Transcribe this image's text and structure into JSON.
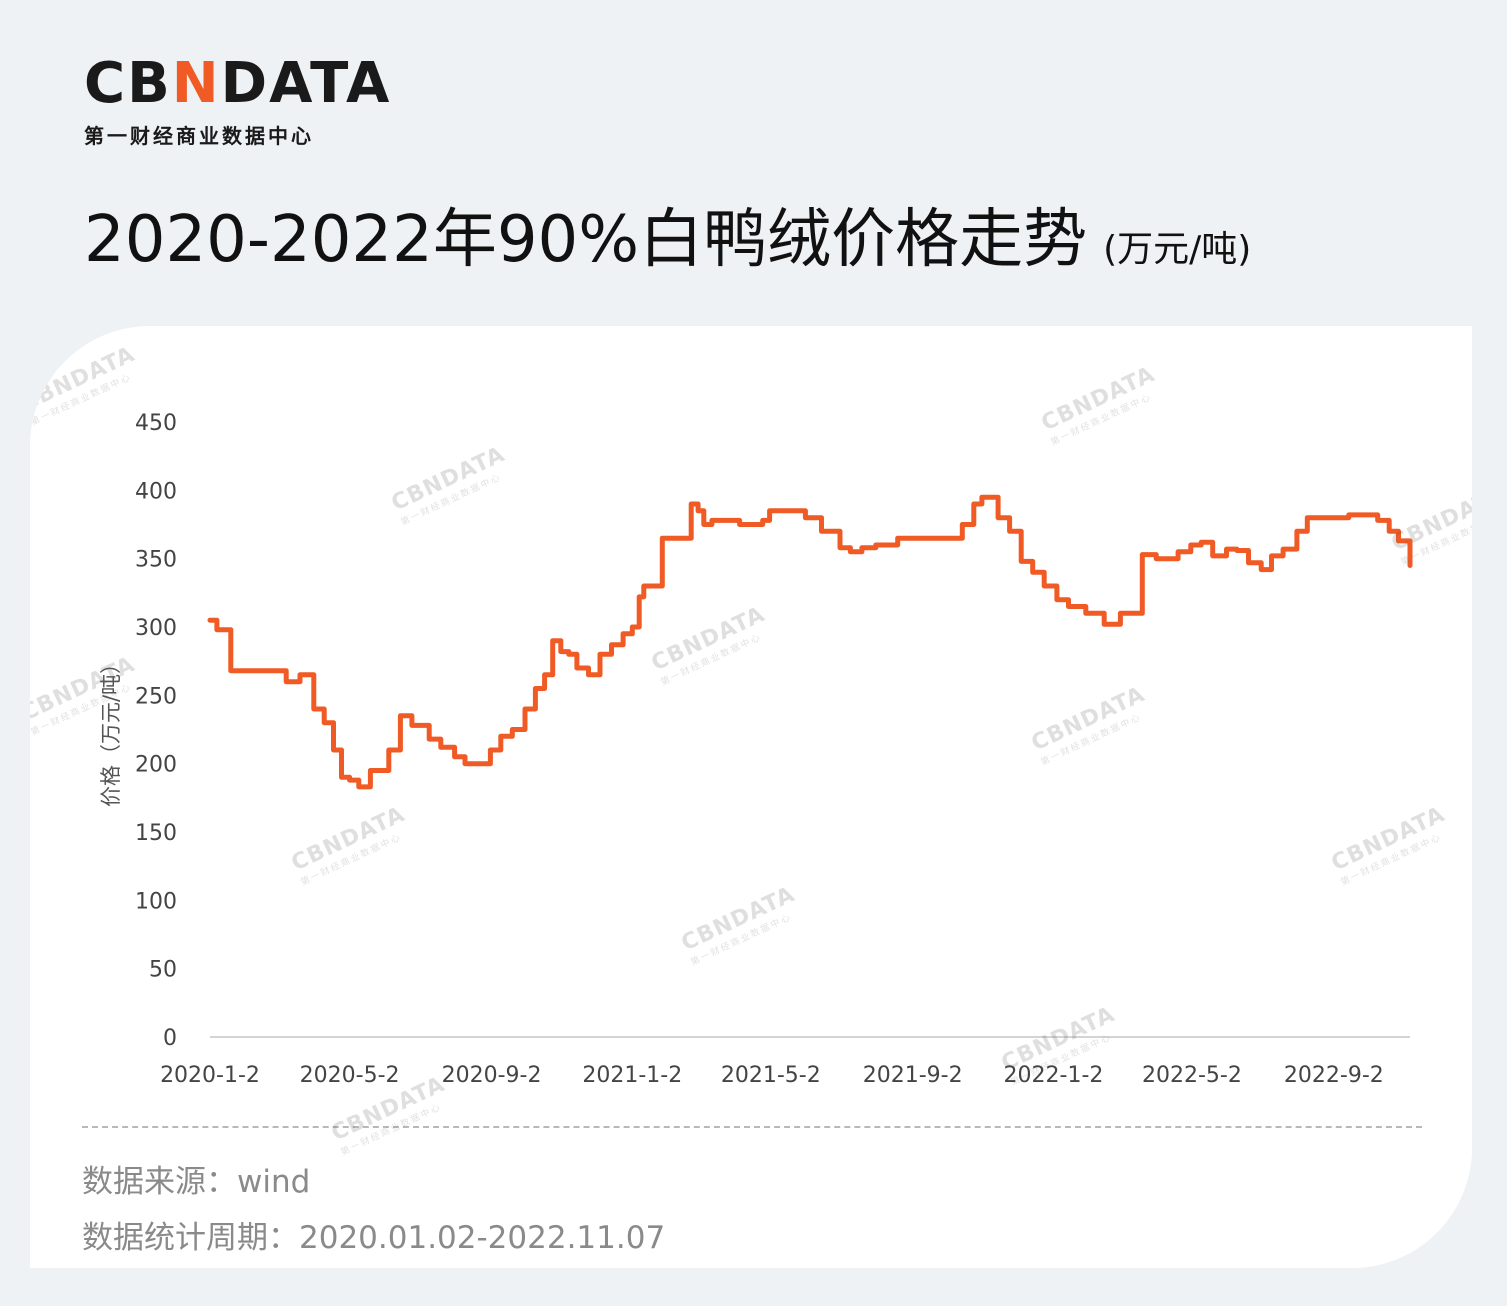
{
  "brand": {
    "logo_pre": "CB",
    "logo_accent": "N",
    "logo_post": "DATA",
    "subtitle": "第一财经商业数据中心",
    "accent_color": "#f05a24"
  },
  "header": {
    "title": "2020-2022年90%白鸭绒价格走势",
    "unit": "(万元/吨)"
  },
  "chart_data": {
    "type": "line",
    "ylabel": "价格（万元/吨）",
    "ylim": [
      0,
      450
    ],
    "yticks": [
      "0",
      "50",
      "100",
      "150",
      "200",
      "250",
      "300",
      "350",
      "400",
      "450"
    ],
    "xticks": [
      "2020-1-2",
      "2020-5-2",
      "2020-9-2",
      "2021-1-2",
      "2021-5-2",
      "2021-9-2",
      "2022-1-2",
      "2022-5-2",
      "2022-9-2"
    ],
    "grid": false,
    "line_color": "#f05a24",
    "series": [
      {
        "x": [
          "2020-01-02",
          "2020-01-08",
          "2020-01-15",
          "2020-01-20",
          "2020-02-01",
          "2020-02-15",
          "2020-03-01",
          "2020-03-08",
          "2020-03-20",
          "2020-04-01",
          "2020-04-10",
          "2020-04-18",
          "2020-04-25",
          "2020-05-02",
          "2020-05-10",
          "2020-05-20",
          "2020-05-28",
          "2020-06-05",
          "2020-06-15",
          "2020-06-25",
          "2020-07-01",
          "2020-07-10",
          "2020-07-20",
          "2020-08-01",
          "2020-08-10",
          "2020-08-20",
          "2020-09-01",
          "2020-09-10",
          "2020-09-20",
          "2020-10-01",
          "2020-10-10",
          "2020-10-18",
          "2020-10-25",
          "2020-11-01",
          "2020-11-08",
          "2020-11-15",
          "2020-11-25",
          "2020-12-05",
          "2020-12-15",
          "2020-12-25",
          "2021-01-02",
          "2021-01-08",
          "2021-01-12",
          "2021-01-18",
          "2021-01-28",
          "2021-02-15",
          "2021-02-22",
          "2021-02-28",
          "2021-03-05",
          "2021-03-12",
          "2021-03-25",
          "2021-04-05",
          "2021-04-20",
          "2021-04-25",
          "2021-05-01",
          "2021-05-15",
          "2021-06-01",
          "2021-06-15",
          "2021-07-01",
          "2021-07-10",
          "2021-07-20",
          "2021-08-01",
          "2021-08-20",
          "2021-09-01",
          "2021-09-20",
          "2021-10-01",
          "2021-10-15",
          "2021-10-25",
          "2021-11-01",
          "2021-11-15",
          "2021-11-25",
          "2021-12-05",
          "2021-12-15",
          "2021-12-25",
          "2022-01-05",
          "2022-01-15",
          "2022-01-30",
          "2022-02-15",
          "2022-03-01",
          "2022-03-10",
          "2022-03-20",
          "2022-04-01",
          "2022-04-10",
          "2022-04-20",
          "2022-05-01",
          "2022-05-10",
          "2022-05-20",
          "2022-06-01",
          "2022-06-10",
          "2022-06-20",
          "2022-07-01",
          "2022-07-10",
          "2022-07-20",
          "2022-08-01",
          "2022-08-10",
          "2022-08-20",
          "2022-09-01",
          "2022-09-15",
          "2022-10-01",
          "2022-10-10",
          "2022-10-20",
          "2022-10-28",
          "2022-11-07"
        ],
        "y": [
          305,
          298,
          298,
          268,
          268,
          268,
          268,
          260,
          265,
          240,
          230,
          210,
          190,
          188,
          183,
          195,
          195,
          210,
          235,
          228,
          228,
          218,
          212,
          205,
          200,
          200,
          210,
          220,
          225,
          240,
          255,
          265,
          290,
          282,
          280,
          270,
          265,
          280,
          287,
          295,
          300,
          322,
          330,
          330,
          365,
          365,
          390,
          385,
          375,
          378,
          378,
          375,
          375,
          378,
          385,
          385,
          380,
          370,
          358,
          355,
          358,
          360,
          365,
          365,
          365,
          365,
          375,
          390,
          395,
          380,
          370,
          348,
          340,
          330,
          320,
          315,
          310,
          302,
          310,
          310,
          353,
          350,
          350,
          355,
          360,
          362,
          352,
          357,
          356,
          347,
          342,
          352,
          357,
          370,
          380,
          380,
          380,
          382,
          382,
          378,
          370,
          363,
          345
        ]
      }
    ]
  },
  "footer": {
    "source": "数据来源：wind",
    "period": "数据统计周期：2020.01.02-2022.11.07"
  }
}
